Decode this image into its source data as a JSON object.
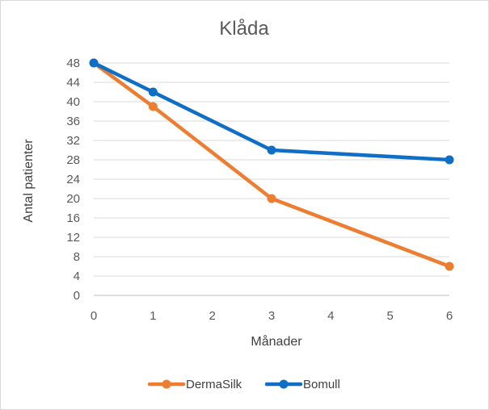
{
  "chart_data": {
    "type": "line",
    "title": "Klåda",
    "xlabel": "Månader",
    "ylabel": "Antal patienter",
    "x": [
      0,
      1,
      3,
      6
    ],
    "x_ticks": [
      0,
      1,
      2,
      3,
      4,
      5,
      6
    ],
    "xlim": [
      0,
      6
    ],
    "y_ticks": [
      0,
      4,
      8,
      12,
      16,
      20,
      24,
      28,
      32,
      36,
      40,
      44,
      48
    ],
    "ylim": [
      0,
      48
    ],
    "grid": true,
    "legend_position": "bottom",
    "series": [
      {
        "name": "DermaSilk",
        "color": "#ED7D31",
        "values": [
          48,
          39,
          20,
          6
        ]
      },
      {
        "name": "Bomull",
        "color": "#0F6FC6",
        "values": [
          48,
          42,
          30,
          28
        ]
      }
    ],
    "gridline_color": "#d9d9d9",
    "axis_color": "#bfbfbf"
  }
}
